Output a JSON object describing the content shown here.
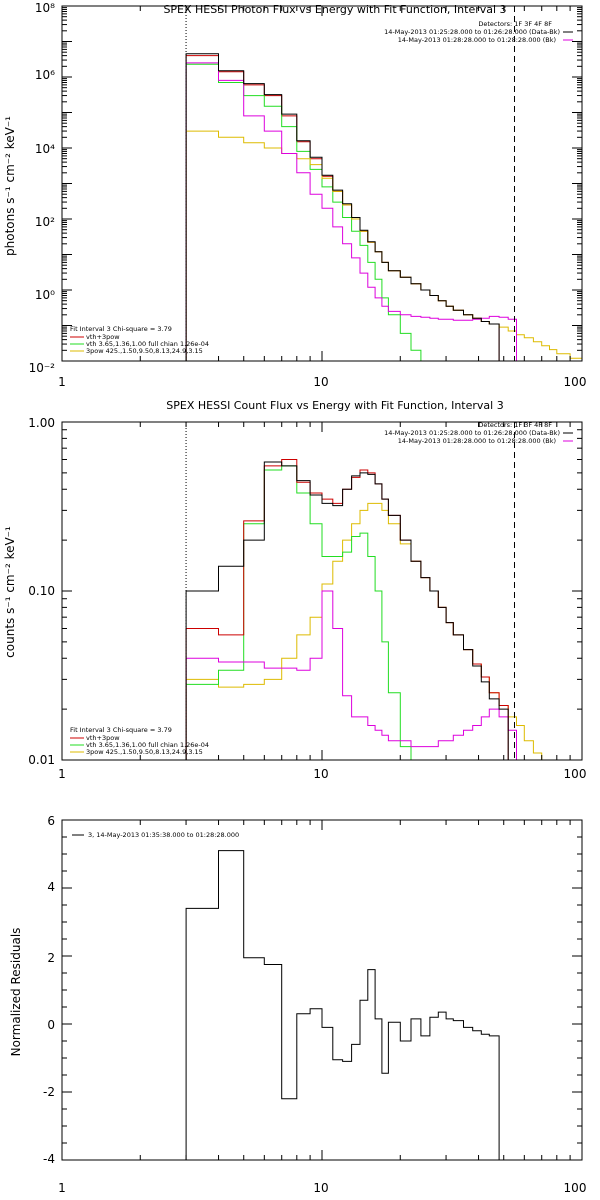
{
  "colors": {
    "data": "#000000",
    "vth_3pow": "#cc0000",
    "vth": "#22dd22",
    "3pow": "#ddbb00",
    "bk": "#dd00dd",
    "axis": "#000000"
  },
  "chart_data": [
    {
      "type": "line",
      "title": "SPEX HESSI Photon Flux vs Energy with Fit Function, Interval 3",
      "xlabel": "",
      "ylabel": "photons s⁻¹ cm⁻² keV⁻¹",
      "xscale": "log",
      "yscale": "log",
      "xlim": [
        1,
        100
      ],
      "ylim": [
        0.01,
        100000000
      ],
      "xtick_labels": [
        "1",
        "10",
        "100"
      ],
      "ytick_labels": [
        "10⁻²",
        "10⁰",
        "10²",
        "10⁴",
        "10⁶",
        "10⁸"
      ],
      "vlines": [
        3,
        55
      ],
      "edges": [
        3,
        4,
        5,
        6,
        7,
        8,
        9,
        10,
        11,
        12,
        13,
        14,
        15,
        16,
        17,
        18,
        20,
        22,
        24,
        26,
        28,
        30,
        32,
        35,
        38,
        41,
        44,
        48,
        52,
        56,
        60,
        65,
        70,
        75,
        80,
        90,
        100
      ],
      "series": [
        {
          "name": "vth+3pow",
          "color_key": "vth_3pow",
          "values": [
            4000000,
            1400000,
            600000,
            300000,
            80000,
            15000,
            5000,
            1600,
            600,
            250,
            100,
            45,
            22,
            12,
            6,
            3.5,
            2.3,
            1.5,
            1.0,
            0.7,
            0.5,
            0.35,
            0.27,
            0.2,
            0.16,
            0.13,
            0.11,
            null,
            null,
            null,
            null,
            null,
            null,
            null,
            null,
            null
          ]
        },
        {
          "name": "vth",
          "color_key": "vth",
          "values": [
            2300000,
            700000,
            300000,
            150000,
            40000,
            8000,
            2500,
            800,
            300,
            110,
            45,
            18,
            6,
            2,
            0.6,
            0.2,
            0.06,
            0.02,
            0.008,
            null,
            null,
            null,
            null,
            null,
            null,
            null,
            null,
            null,
            null,
            null,
            null,
            null,
            null,
            null,
            null,
            null
          ]
        },
        {
          "name": "3pow",
          "color_key": "3pow",
          "values": [
            30000,
            20000,
            14000,
            10000,
            7000,
            5000,
            3400,
            1400,
            600,
            250,
            100,
            45,
            22,
            12,
            6,
            3.5,
            2.3,
            1.5,
            1.0,
            0.7,
            0.5,
            0.35,
            0.27,
            0.2,
            0.16,
            0.13,
            0.11,
            0.09,
            0.07,
            0.055,
            0.045,
            0.035,
            0.027,
            0.021,
            0.016,
            0.012
          ]
        },
        {
          "name": "14-May-2013 01:28:28.000 to 01:28:28.000 (Bk)",
          "color_key": "bk",
          "values": [
            2500000,
            800000,
            80000,
            30000,
            7000,
            2000,
            500,
            200,
            60,
            20,
            8,
            3,
            1.2,
            0.6,
            0.35,
            0.25,
            0.2,
            0.18,
            0.17,
            0.16,
            0.15,
            0.15,
            0.14,
            0.14,
            0.15,
            0.16,
            0.18,
            0.17,
            0.15,
            null,
            null,
            null,
            null,
            null,
            null,
            null
          ]
        },
        {
          "name": "14-May-2013 01:25:28.000 to 01:26:28.000 (Data-Bk)",
          "color_key": "data",
          "values": [
            4500000,
            1500000,
            650000,
            320000,
            90000,
            16000,
            5500,
            1700,
            650,
            270,
            110,
            48,
            23,
            12,
            6,
            3.5,
            2.3,
            1.5,
            1.0,
            0.7,
            0.5,
            0.35,
            0.27,
            0.2,
            0.16,
            0.13,
            0.11,
            null,
            null,
            null,
            null,
            null,
            null,
            null,
            null,
            null
          ]
        }
      ],
      "legend_top_right": [
        "Detectors: 1F 3F 4F 8F",
        "14-May-2013 01:25:28.000 to 01:26:28.000 (Data-Bk)",
        "14-May-2013 01:28:28.000 to 01:28:28.000 (Bk)"
      ],
      "legend_bottom_left": [
        "Fit Interval 3   Chi-square = 3.79",
        "vth+3pow",
        "vth 3.65,1.36,1.00  full chian 1.26e-04",
        "3pow 425.,1.50,9.50,8.13,24.9,3.15"
      ]
    },
    {
      "type": "line",
      "title": "SPEX HESSI Count Flux vs Energy with Fit Function, Interval 3",
      "xlabel": "",
      "ylabel": "counts s⁻¹ cm⁻² keV⁻¹",
      "xscale": "log",
      "yscale": "log",
      "xlim": [
        1,
        100
      ],
      "ylim": [
        0.01,
        1.0
      ],
      "xtick_labels": [
        "1",
        "10",
        "100"
      ],
      "ytick_labels": [
        "0.01",
        "0.10",
        "1.00"
      ],
      "vlines": [
        3,
        55
      ],
      "edges": [
        3,
        4,
        5,
        6,
        7,
        8,
        9,
        10,
        11,
        12,
        13,
        14,
        15,
        16,
        17,
        18,
        20,
        22,
        24,
        26,
        28,
        30,
        32,
        35,
        38,
        41,
        44,
        48,
        52,
        56,
        60,
        65,
        70,
        75
      ],
      "series": [
        {
          "name": "3pow",
          "color_key": "3pow",
          "values": [
            0.03,
            0.027,
            0.028,
            0.03,
            0.04,
            0.055,
            0.07,
            0.11,
            0.15,
            0.2,
            0.25,
            0.3,
            0.33,
            0.33,
            0.3,
            0.25,
            0.19,
            0.15,
            0.12,
            0.1,
            0.08,
            0.065,
            0.055,
            0.045,
            0.037,
            0.031,
            0.025,
            0.021,
            0.018,
            0.016,
            0.013,
            0.011,
            0.01
          ]
        },
        {
          "name": "vth",
          "color_key": "vth",
          "values": [
            0.028,
            0.034,
            0.25,
            0.52,
            0.55,
            0.38,
            0.25,
            0.16,
            0.16,
            0.17,
            0.21,
            0.22,
            0.16,
            0.1,
            0.05,
            0.025,
            0.012,
            0.008,
            null,
            null,
            null,
            null,
            null,
            null,
            null,
            null,
            null,
            null,
            null,
            null,
            null,
            null,
            null
          ]
        },
        {
          "name": "14-May-2013 01:28:28.000 to 01:28:28.000 (Bk)",
          "color_key": "bk",
          "values": [
            0.04,
            0.038,
            0.038,
            0.035,
            0.035,
            0.034,
            0.04,
            0.1,
            0.06,
            0.024,
            0.018,
            0.018,
            0.016,
            0.015,
            0.014,
            0.013,
            0.013,
            0.012,
            0.012,
            0.012,
            0.013,
            0.013,
            0.014,
            0.015,
            0.016,
            0.018,
            0.02,
            0.018,
            0.015,
            null,
            null,
            null,
            null
          ]
        },
        {
          "name": "vth+3pow",
          "color_key": "vth_3pow",
          "values": [
            0.06,
            0.055,
            0.26,
            0.55,
            0.6,
            0.44,
            0.38,
            0.35,
            0.33,
            0.4,
            0.47,
            0.52,
            0.5,
            0.43,
            0.35,
            0.28,
            0.2,
            0.15,
            0.12,
            0.1,
            0.08,
            0.065,
            0.055,
            0.045,
            0.037,
            0.031,
            0.025,
            0.021,
            null,
            null,
            null,
            null,
            null
          ]
        },
        {
          "name": "14-May-2013 01:25:28.000 to 01:26:28.000 (Data-Bk)",
          "color_key": "data",
          "values": [
            0.1,
            0.14,
            0.2,
            0.58,
            0.55,
            0.45,
            0.37,
            0.33,
            0.32,
            0.4,
            0.48,
            0.5,
            0.49,
            0.43,
            0.35,
            0.28,
            0.2,
            0.15,
            0.12,
            0.1,
            0.08,
            0.065,
            0.055,
            0.045,
            0.036,
            0.029,
            0.023,
            0.02,
            null,
            null,
            null,
            null,
            null
          ]
        }
      ],
      "legend_top_right": [
        "Detectors: 1F 3F 4F 8F",
        "14-May-2013 01:25:28.000 to 01:26:28.000 (Data-Bk)",
        "14-May-2013 01:28:28.000 to 01:28:28.000 (Bk)"
      ],
      "legend_bottom_left": [
        "Fit Interval 3   Chi-square = 3.79",
        "vth+3pow",
        "vth 3.65,1.36,1.00  full chian 1.26e-04",
        "3pow 425.,1.50,9.50,8.13,24.9,3.15"
      ]
    },
    {
      "type": "line",
      "title": "",
      "xlabel": "",
      "ylabel": "Normalized Residuals",
      "xscale": "log",
      "yscale": "linear",
      "xlim": [
        1,
        100
      ],
      "ylim": [
        -4,
        6
      ],
      "xtick_labels": [
        "1",
        "10",
        "100"
      ],
      "ytick_labels": [
        "-4",
        "-2",
        "0",
        "2",
        "4",
        "6"
      ],
      "edges": [
        3,
        4,
        5,
        6,
        7,
        8,
        9,
        10,
        11,
        12,
        13,
        14,
        15,
        16,
        17,
        18,
        20,
        22,
        24,
        26,
        28,
        30,
        32,
        35,
        38,
        41,
        44,
        48,
        52,
        56
      ],
      "series": [
        {
          "name": "3, 14-May-2013 01:35:38.000 to 01:28:28.000",
          "color_key": "data",
          "values": [
            3.4,
            5.1,
            1.95,
            1.75,
            -2.2,
            0.3,
            0.45,
            -0.1,
            -1.05,
            -1.1,
            -0.6,
            0.7,
            1.6,
            0.15,
            -1.45,
            0.05,
            -0.5,
            0.15,
            -0.35,
            0.2,
            0.35,
            0.15,
            0.1,
            -0.1,
            -0.2,
            -0.3,
            -0.35,
            null,
            null
          ]
        }
      ],
      "legend_top_left": "3, 14-May-2013 01:35:38.000 to 01:28:28.000"
    }
  ]
}
